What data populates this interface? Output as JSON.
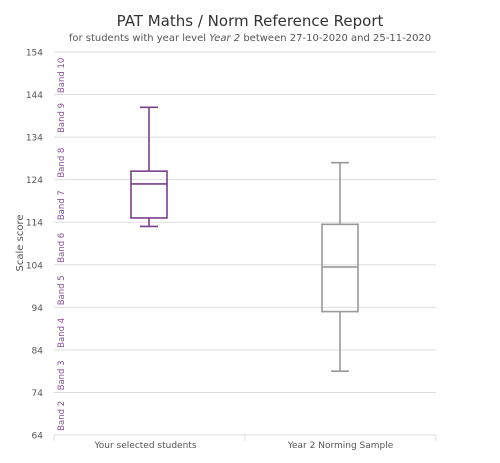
{
  "header": {
    "title": "PAT Maths / Norm Reference Report",
    "subtitle_prefix": "for students with year level ",
    "subtitle_level": "Year 2",
    "subtitle_suffix": " between 27-10-2020 and 25-11-2020"
  },
  "colors": {
    "selected": "#7b3f8c",
    "norm": "#999999",
    "band_label": "#8e4ba0",
    "grid": "#dddddd",
    "axis_text": "#555555"
  },
  "chart_data": {
    "type": "boxplot",
    "ylabel": "Scale score",
    "ylim": [
      64,
      154
    ],
    "yticks": [
      64,
      74,
      84,
      94,
      104,
      114,
      124,
      134,
      144,
      154
    ],
    "grid": true,
    "categories": [
      "Your selected students",
      "Year 2 Norming Sample"
    ],
    "series": [
      {
        "min": 113,
        "q1": 115,
        "median": 123,
        "q3": 126,
        "max": 141,
        "color": "#7b3f8c"
      },
      {
        "min": 79,
        "q1": 93,
        "median": 103.5,
        "q3": 113.5,
        "max": 128,
        "color": "#999999"
      }
    ],
    "bands": [
      {
        "label": "Band 2",
        "center": 68.5
      },
      {
        "label": "Band 3",
        "center": 78
      },
      {
        "label": "Band 4",
        "center": 88
      },
      {
        "label": "Band 5",
        "center": 98
      },
      {
        "label": "Band 6",
        "center": 108
      },
      {
        "label": "Band 7",
        "center": 118
      },
      {
        "label": "Band 8",
        "center": 128
      },
      {
        "label": "Band 9",
        "center": 138.5
      },
      {
        "label": "Band 10",
        "center": 148.5
      }
    ]
  }
}
